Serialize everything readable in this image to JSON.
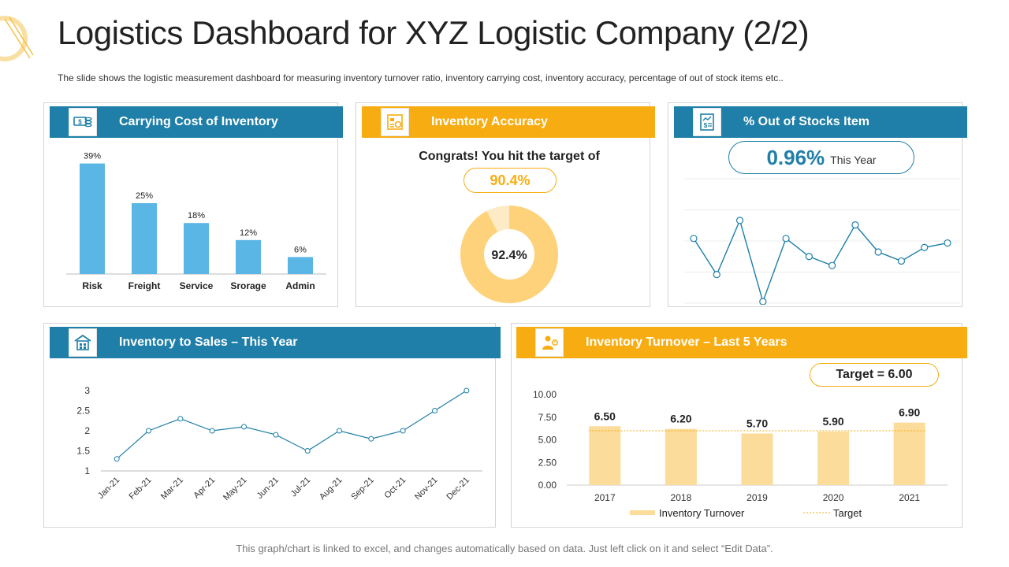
{
  "title": "Logistics Dashboard for XYZ Logistic Company (2/2)",
  "subtitle": "The slide shows the logistic measurement dashboard for measuring inventory turnover ratio, inventory carrying cost, inventory accuracy, percentage of out of stock items etc..",
  "footer": "This graph/chart is linked to excel, and changes automatically based on data. Just left click on it and select “Edit Data”.",
  "colors": {
    "blue": "#1f7fa8",
    "yellow": "#f7ad12",
    "bar_blue": "#5ab6e4",
    "donut": "#fdd27a",
    "donut_rest": "#fdebc6",
    "turnover_bar": "#fcdc9a"
  },
  "panels": {
    "carrying": {
      "header": "Carrying Cost of Inventory",
      "icon": "money-stack-icon"
    },
    "accuracy": {
      "header": "Inventory Accuracy",
      "icon": "calculator-chart-icon",
      "message": "Congrats! You hit the target of",
      "target": "90.4%"
    },
    "out_of_stock": {
      "header": "% Out of Stocks Item",
      "icon": "dollar-document-icon",
      "value": "0.96%",
      "period": "This Year"
    },
    "inv_sales": {
      "header": "Inventory to Sales – This Year",
      "icon": "warehouse-icon"
    },
    "turnover": {
      "header": "Inventory Turnover – Last 5 Years",
      "icon": "worker-icon",
      "target_label": "Target = 6.00"
    }
  },
  "chart_data": [
    {
      "id": "carrying_cost",
      "type": "bar",
      "title": "Carrying Cost of Inventory",
      "categories": [
        "Risk",
        "Freight",
        "Service",
        "Srorage",
        "Admin"
      ],
      "values": [
        39,
        25,
        18,
        12,
        6
      ],
      "labels": [
        "39%",
        "25%",
        "18%",
        "12%",
        "6%"
      ],
      "ylim": [
        0,
        40
      ]
    },
    {
      "id": "inventory_accuracy",
      "type": "pie",
      "title": "Inventory Accuracy",
      "values": [
        92.4,
        7.6
      ],
      "center_label": "92.4%"
    },
    {
      "id": "out_of_stock",
      "type": "line",
      "title": "% Out of Stocks Item",
      "x": [
        1,
        2,
        3,
        4,
        5,
        6,
        7,
        8,
        9,
        10,
        11,
        12
      ],
      "values": [
        1.1,
        0.7,
        1.3,
        0.4,
        1.1,
        0.9,
        0.8,
        1.25,
        0.95,
        0.85,
        1.0,
        1.05
      ],
      "ylim": [
        0.4,
        1.5
      ]
    },
    {
      "id": "inventory_to_sales",
      "type": "line",
      "title": "Inventory to Sales – This Year",
      "categories": [
        "Jan-21",
        "Feb-21",
        "Mar-21",
        "Apr-21",
        "May-21",
        "Jun-21",
        "Jul-21",
        "Aug-21",
        "Sep-21",
        "Oct-21",
        "Nov-21",
        "Dec-21"
      ],
      "values": [
        1.3,
        2.0,
        2.3,
        2.0,
        2.1,
        1.9,
        1.5,
        2.0,
        1.8,
        2.0,
        2.5,
        3.0
      ],
      "yticks": [
        "1",
        "1.5",
        "2",
        "2.5",
        "3"
      ],
      "ylim": [
        1,
        3
      ]
    },
    {
      "id": "inventory_turnover",
      "type": "bar",
      "title": "Inventory Turnover – Last 5 Years",
      "categories": [
        "2017",
        "2018",
        "2019",
        "2020",
        "2021"
      ],
      "values": [
        6.5,
        6.2,
        5.7,
        5.9,
        6.9
      ],
      "labels": [
        "6.50",
        "6.20",
        "5.70",
        "5.90",
        "6.90"
      ],
      "target": 6.0,
      "yticks": [
        "0.00",
        "2.50",
        "5.00",
        "7.50",
        "10.00"
      ],
      "ylim": [
        0,
        10
      ],
      "legend": [
        "Inventory Turnover",
        "Target"
      ]
    }
  ]
}
